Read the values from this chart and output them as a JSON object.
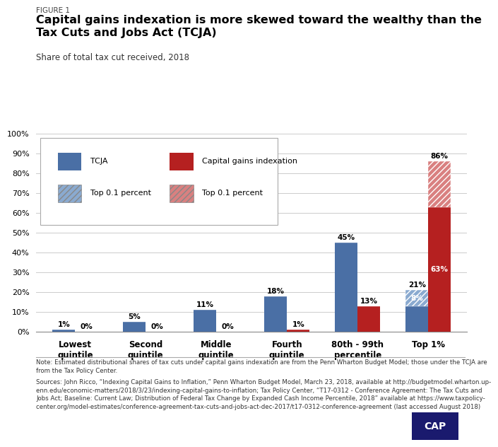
{
  "figure_label": "FIGURE 1",
  "title": "Capital gains indexation is more skewed toward the wealthy than the\nTax Cuts and Jobs Act (TCJA)",
  "subtitle": "Share of total tax cut received, 2018",
  "categories": [
    "Lowest\nquintile",
    "Second\nquintile",
    "Middle\nquintile",
    "Fourth\nquintile",
    "80th - 99th\npercentile",
    "Top 1%"
  ],
  "tcja_values": [
    1,
    5,
    11,
    18,
    45,
    21
  ],
  "tcja_top01_values": [
    0,
    0,
    0,
    0,
    0,
    8
  ],
  "capgains_base_values": [
    0,
    0,
    0,
    1,
    13,
    63
  ],
  "capgains_top01_values": [
    0,
    0,
    0,
    0,
    0,
    23
  ],
  "tcja_labels": [
    "1%",
    "5%",
    "11%",
    "18%",
    "45%",
    "21%"
  ],
  "capgains_labels": [
    "0%",
    "0%",
    "0%",
    "1%",
    "13%",
    "86%"
  ],
  "tcja_color": "#4a6fa5",
  "tcja_top01_color": "#8aaad0",
  "capgains_color": "#b52020",
  "capgains_top01_color": "#d98080",
  "ylim": [
    0,
    100
  ],
  "yticks": [
    0,
    10,
    20,
    30,
    40,
    50,
    60,
    70,
    80,
    90,
    100
  ],
  "note_text": "Note: Estimated distributional shares of tax cuts under capital gains indexation are from the Penn Wharton Budget Model; those under the TCJA are\nfrom the Tax Policy Center.",
  "source_text": "Sources: John Ricco, “Indexing Capital Gains to Inflation,” Penn Wharton Budget Model, March 23, 2018, available at http://budgetmodel.wharton.up-\nenn.edu/economic-matters/2018/3/23/indexing-capital-gains-to-inflation; Tax Policy Center, “T17-0312 - Conference Agreement: The Tax Cuts and\nJobs Act; Baseline: Current Law; Distribution of Federal Tax Change by Expanded Cash Income Percentile, 2018” available at https://www.taxpolicy-\ncenter.org/model-estimates/conference-agreement-tax-cuts-and-jobs-act-dec-2017/t17-0312-conference-agreement (last accessed August 2018)",
  "bar_width": 0.32,
  "background_color": "#ffffff"
}
